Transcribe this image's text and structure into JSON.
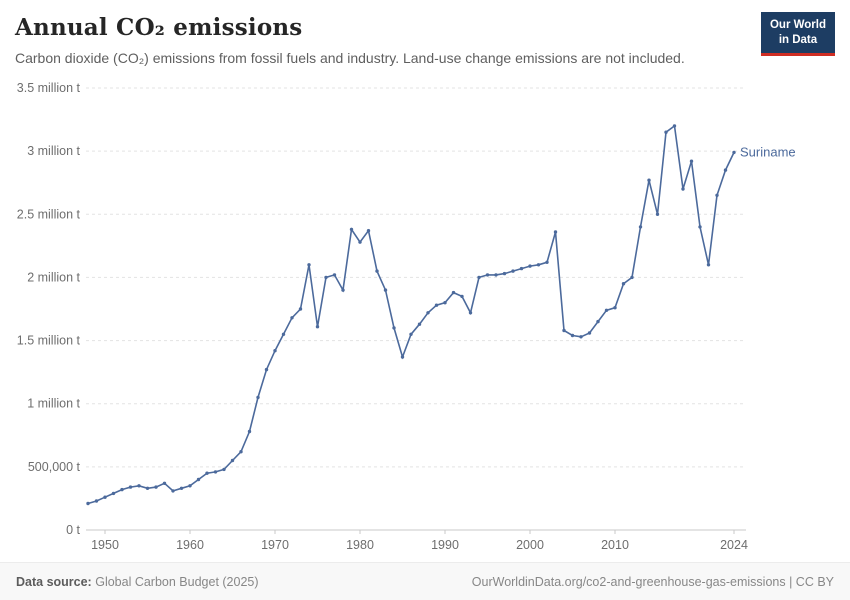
{
  "header": {
    "title": "Annual CO₂ emissions",
    "subtitle": "Carbon dioxide (CO₂) emissions from fossil fuels and industry. Land-use change emissions are not included.",
    "logo": {
      "line1": "Our World",
      "line2": "in Data",
      "bg_color": "#1d3d63",
      "accent_color": "#cf2d23"
    }
  },
  "chart_data": {
    "type": "line",
    "title": "Annual CO₂ emissions",
    "xlabel": "",
    "ylabel": "",
    "unit": "t",
    "grid": true,
    "xlim": [
      1948,
      2024
    ],
    "ylim": [
      0,
      3.5
    ],
    "x_ticks": [
      1950,
      1960,
      1970,
      1980,
      1990,
      2000,
      2010,
      2024
    ],
    "y_ticks": [
      {
        "v": 0,
        "label": "0 t"
      },
      {
        "v": 0.5,
        "label": "500,000 t"
      },
      {
        "v": 1,
        "label": "1 million t"
      },
      {
        "v": 1.5,
        "label": "1.5 million t"
      },
      {
        "v": 2,
        "label": "2 million t"
      },
      {
        "v": 2.5,
        "label": "2.5 million t"
      },
      {
        "v": 3,
        "label": "3 million t"
      },
      {
        "v": 3.5,
        "label": "3.5 million t"
      }
    ],
    "series": [
      {
        "name": "Suriname",
        "color": "#4c6a9c",
        "unit": "million t",
        "x": [
          1948,
          1949,
          1950,
          1951,
          1952,
          1953,
          1954,
          1955,
          1956,
          1957,
          1958,
          1959,
          1960,
          1961,
          1962,
          1963,
          1964,
          1965,
          1966,
          1967,
          1968,
          1969,
          1970,
          1971,
          1972,
          1973,
          1974,
          1975,
          1976,
          1977,
          1978,
          1979,
          1980,
          1981,
          1982,
          1983,
          1984,
          1985,
          1986,
          1987,
          1988,
          1989,
          1990,
          1991,
          1992,
          1993,
          1994,
          1995,
          1996,
          1997,
          1998,
          1999,
          2000,
          2001,
          2002,
          2003,
          2004,
          2005,
          2006,
          2007,
          2008,
          2009,
          2010,
          2011,
          2012,
          2013,
          2014,
          2015,
          2016,
          2017,
          2018,
          2019,
          2020,
          2021,
          2022,
          2023,
          2024
        ],
        "values": [
          0.21,
          0.23,
          0.26,
          0.29,
          0.32,
          0.34,
          0.35,
          0.33,
          0.34,
          0.37,
          0.31,
          0.33,
          0.35,
          0.4,
          0.45,
          0.46,
          0.48,
          0.55,
          0.62,
          0.78,
          1.05,
          1.27,
          1.42,
          1.55,
          1.68,
          1.75,
          2.1,
          1.61,
          2.0,
          2.02,
          1.9,
          2.38,
          2.28,
          2.37,
          2.05,
          1.9,
          1.6,
          1.37,
          1.55,
          1.63,
          1.72,
          1.78,
          1.8,
          1.88,
          1.85,
          1.72,
          2.0,
          2.02,
          2.02,
          2.03,
          2.05,
          2.07,
          2.09,
          2.1,
          2.12,
          2.36,
          1.58,
          1.54,
          1.53,
          1.56,
          1.65,
          1.74,
          1.76,
          1.95,
          2.0,
          2.4,
          2.77,
          2.5,
          3.15,
          3.2,
          2.7,
          2.92,
          2.4,
          2.1,
          2.65,
          2.85,
          2.99
        ]
      }
    ],
    "end_label": "Suriname",
    "legend_position": "end-of-line"
  },
  "footer": {
    "source_label": "Data source:",
    "source": "Global Carbon Budget (2025)",
    "credit": "OurWorldinData.org/co2-and-greenhouse-gas-emissions | CC BY"
  }
}
